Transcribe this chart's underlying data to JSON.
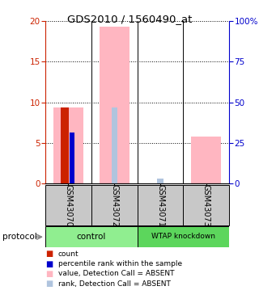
{
  "title": "GDS2010 / 1560490_at",
  "samples": [
    "GSM43070",
    "GSM43072",
    "GSM43071",
    "GSM43073"
  ],
  "ylim_left": [
    0,
    20
  ],
  "ylim_right": [
    0,
    100
  ],
  "yticks_left": [
    0,
    5,
    10,
    15,
    20
  ],
  "yticks_right": [
    0,
    25,
    50,
    75,
    100
  ],
  "ytick_labels_right": [
    "0",
    "25",
    "50",
    "75",
    "100%"
  ],
  "bar_value_absent": [
    9.4,
    19.3,
    0.0,
    5.8
  ],
  "bar_rank_absent": [
    0.0,
    9.4,
    0.6,
    0.0
  ],
  "bar_count": [
    9.4,
    0.0,
    0.0,
    0.0
  ],
  "bar_percentile": [
    6.3,
    0.0,
    0.0,
    0.0
  ],
  "color_value_absent": "#ffb6c1",
  "color_rank_absent": "#b0c4de",
  "color_count": "#cc2200",
  "color_percentile": "#0000cc",
  "control_color": "#90ee90",
  "knockdown_color": "#5cd65c",
  "legend_items": [
    {
      "color": "#cc2200",
      "label": "count"
    },
    {
      "color": "#0000cc",
      "label": "percentile rank within the sample"
    },
    {
      "color": "#ffb6c1",
      "label": "value, Detection Call = ABSENT"
    },
    {
      "color": "#b0c4de",
      "label": "rank, Detection Call = ABSENT"
    }
  ],
  "sample_bg": "#c8c8c8",
  "left_axis_color": "#cc2200",
  "right_axis_color": "#0000cc"
}
